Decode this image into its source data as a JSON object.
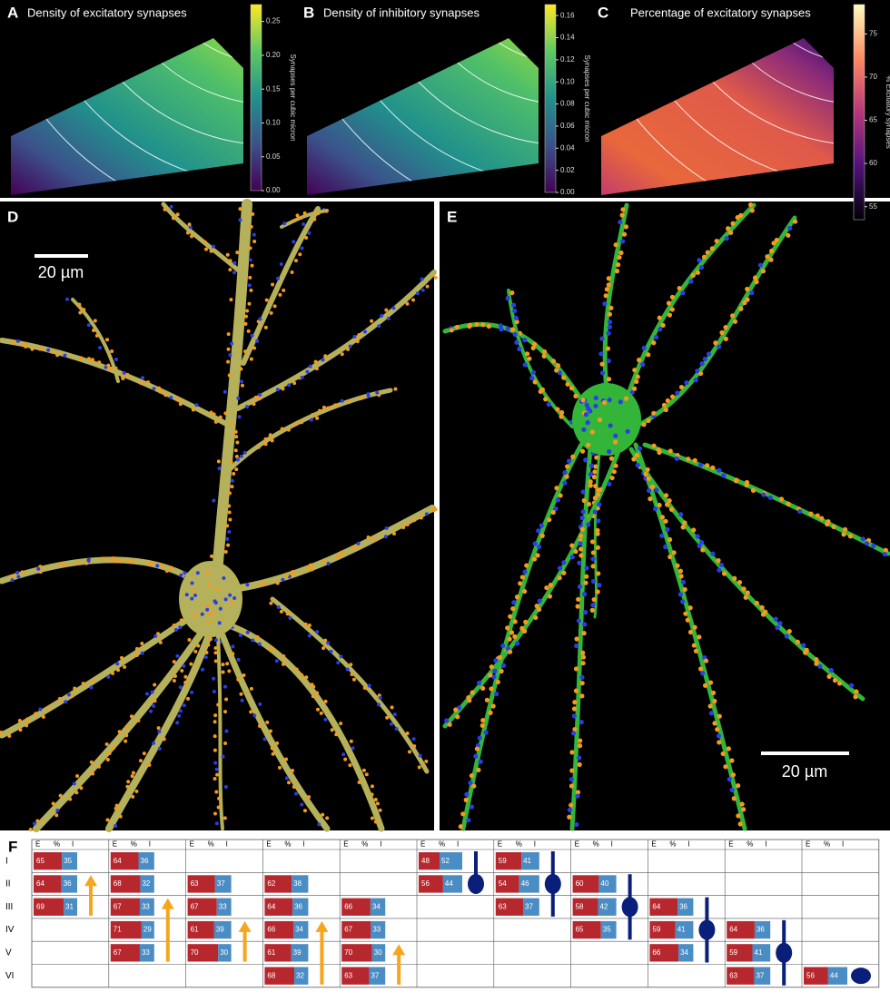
{
  "panels": {
    "A": {
      "label": "A",
      "title": "Density of excitatory synapses",
      "colorbar": {
        "label": "Synapses per cubic micron",
        "lim": [
          0,
          0.275
        ],
        "ticks": [
          {
            "value": 0,
            "label": "0.00"
          },
          {
            "value": 0.05,
            "label": "0.05"
          },
          {
            "value": 0.1,
            "label": "0.10"
          },
          {
            "value": 0.15,
            "label": "0.15"
          },
          {
            "value": 0.2,
            "label": "0.20"
          },
          {
            "value": 0.25,
            "label": "0.25"
          }
        ]
      }
    },
    "B": {
      "label": "B",
      "title": "Density of inhibitory synapses",
      "colorbar": {
        "label": "Synapses per cubic micron",
        "lim": [
          0,
          0.17
        ],
        "ticks": [
          {
            "value": 0,
            "label": "0.00"
          },
          {
            "value": 0.02,
            "label": "0.02"
          },
          {
            "value": 0.04,
            "label": "0.04"
          },
          {
            "value": 0.06,
            "label": "0.06"
          },
          {
            "value": 0.08,
            "label": "0.08"
          },
          {
            "value": 0.1,
            "label": "0.10"
          },
          {
            "value": 0.12,
            "label": "0.12"
          },
          {
            "value": 0.14,
            "label": "0.14"
          },
          {
            "value": 0.16,
            "label": "0.16"
          }
        ]
      }
    },
    "C": {
      "label": "C",
      "title": "Percentage of excitatory synapses",
      "colorbar": {
        "label": "% Excitatory synapses",
        "lim": [
          53.5,
          78.4
        ],
        "ticks": [
          55,
          60,
          65,
          70,
          75
        ]
      }
    },
    "D": {
      "label": "D",
      "scale_bar": "20 µm"
    },
    "E": {
      "label": "E",
      "scale_bar": "20 µm"
    }
  },
  "table": {
    "label": "F",
    "header": [
      "E",
      "%",
      "I"
    ],
    "layers": [
      "I",
      "II",
      "III",
      "IV",
      "V",
      "VI"
    ],
    "columns": [
      {
        "cells": [
          [
            65,
            35
          ],
          [
            64,
            36
          ],
          [
            69,
            31
          ],
          null,
          null,
          null
        ]
      },
      {
        "cells": [
          [
            64,
            36
          ],
          [
            68,
            32
          ],
          [
            67,
            33
          ],
          [
            71,
            29
          ],
          [
            67,
            33
          ],
          null
        ]
      },
      {
        "cells": [
          null,
          [
            63,
            37
          ],
          [
            67,
            33
          ],
          [
            61,
            39
          ],
          [
            70,
            30
          ],
          null
        ]
      },
      {
        "cells": [
          null,
          [
            62,
            38
          ],
          [
            64,
            36
          ],
          [
            66,
            34
          ],
          [
            61,
            39
          ],
          [
            68,
            32
          ]
        ]
      },
      {
        "cells": [
          null,
          null,
          [
            66,
            34
          ],
          [
            67,
            33
          ],
          [
            70,
            30
          ],
          [
            63,
            37
          ]
        ]
      },
      {
        "cells": [
          [
            48,
            52
          ],
          [
            56,
            44
          ],
          null,
          null,
          null,
          null
        ]
      },
      {
        "cells": [
          [
            59,
            41
          ],
          [
            54,
            46
          ],
          [
            63,
            37
          ],
          null,
          null,
          null
        ]
      },
      {
        "cells": [
          null,
          [
            60,
            40
          ],
          [
            58,
            42
          ],
          [
            65,
            35
          ],
          null,
          null
        ]
      },
      {
        "cells": [
          null,
          null,
          [
            64,
            36
          ],
          [
            59,
            41
          ],
          [
            66,
            34
          ],
          null
        ]
      },
      {
        "cells": [
          null,
          null,
          null,
          [
            64,
            36
          ],
          [
            59,
            41
          ],
          [
            63,
            37
          ]
        ]
      },
      {
        "cells": [
          null,
          null,
          null,
          null,
          null,
          [
            56,
            44
          ]
        ]
      }
    ]
  }
}
